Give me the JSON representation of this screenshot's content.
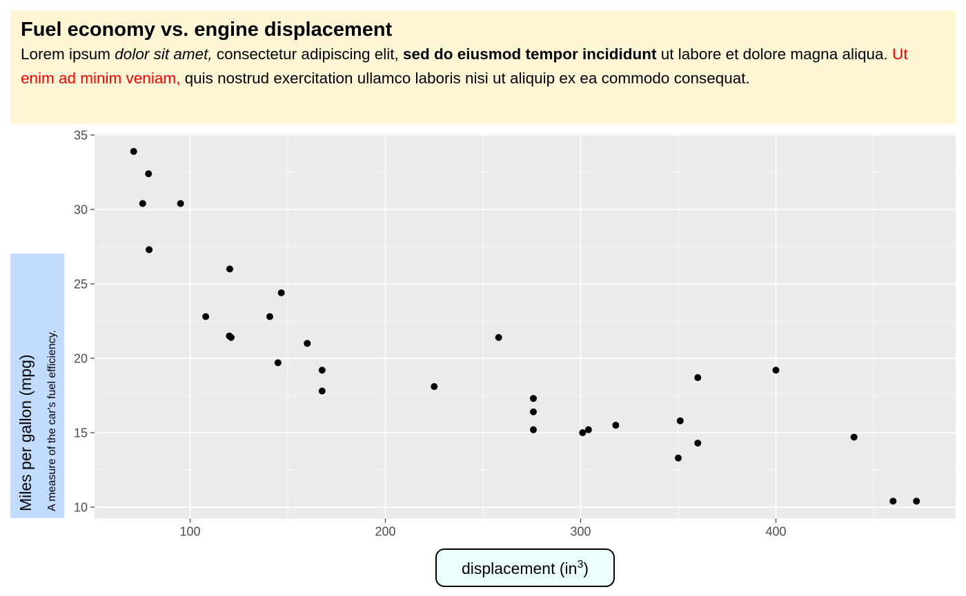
{
  "chart_data": {
    "type": "scatter",
    "title": "Fuel economy vs. engine displacement",
    "subtitle": [
      {
        "text": "Lorem ipsum ",
        "style": "normal"
      },
      {
        "text": "dolor sit amet,",
        "style": "italic"
      },
      {
        "text": " consectetur adipiscing elit, ",
        "style": "normal"
      },
      {
        "text": "sed do eiusmod tempor incididunt",
        "style": "bold"
      },
      {
        "text": " ut labore et dolore magna aliqua. ",
        "style": "normal"
      },
      {
        "text": "Ut enim ad minim veniam,",
        "style": "red"
      },
      {
        "text": " quis nostrud exercitation ullamco laboris nisi ut aliquip ex ea commodo consequat.",
        "style": "normal"
      }
    ],
    "xlabel": {
      "text": "displacement (in",
      "superscript": "3",
      "suffix": ")"
    },
    "ylabel": "Miles per gallon (mpg)",
    "ylabel_note": "A measure of the car's fuel efficiency.",
    "x": [
      160,
      160,
      108,
      258,
      360,
      225,
      360,
      146.7,
      140.8,
      167.6,
      167.6,
      275.8,
      275.8,
      275.8,
      472,
      460,
      440,
      78.7,
      75.7,
      71.1,
      120.1,
      318,
      304,
      350,
      400,
      79,
      120.3,
      95.1,
      351,
      145,
      301,
      121
    ],
    "values": [
      21.0,
      21.0,
      22.8,
      21.4,
      18.7,
      18.1,
      14.3,
      24.4,
      22.8,
      19.2,
      17.8,
      16.4,
      17.3,
      15.2,
      10.4,
      10.4,
      14.7,
      32.4,
      30.4,
      33.9,
      21.5,
      15.5,
      15.2,
      13.3,
      19.2,
      27.3,
      26.0,
      30.4,
      15.8,
      19.7,
      15.0,
      21.4
    ],
    "color": "#000000",
    "xlim": [
      51.05,
      492.05
    ],
    "ylim": [
      9.225,
      35.075
    ],
    "xticks": [
      100,
      200,
      300,
      400
    ],
    "yticks": [
      10,
      15,
      20,
      25,
      30,
      35
    ],
    "grid": true
  }
}
